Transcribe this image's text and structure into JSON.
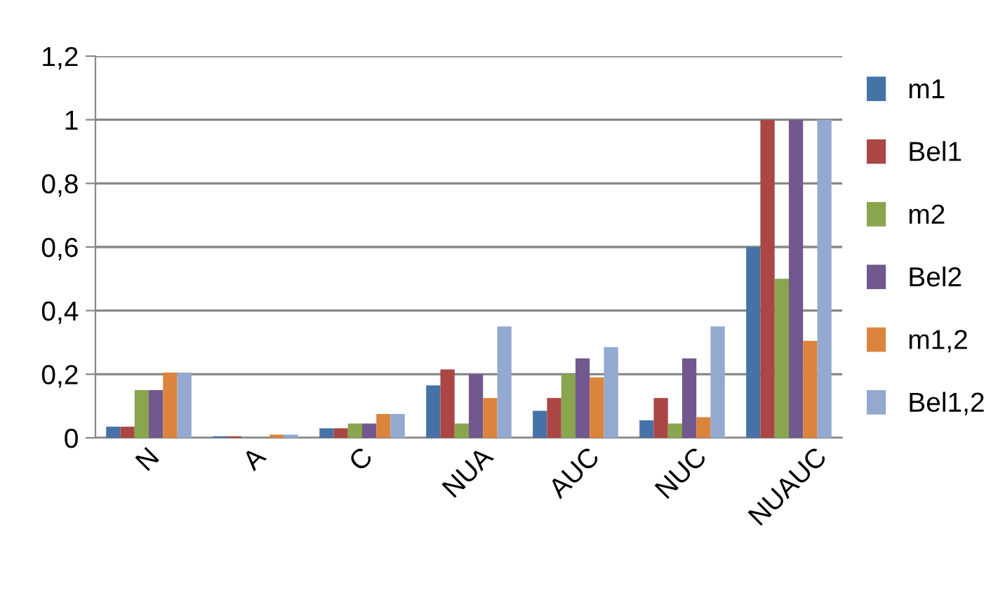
{
  "chart_data": {
    "type": "bar",
    "categories": [
      "N",
      "A",
      "C",
      "NUA",
      "AUC",
      "NUC",
      "NUAUC"
    ],
    "series": [
      {
        "name": "m1",
        "color": "#4572a7",
        "values": [
          0.035,
          0.005,
          0.03,
          0.165,
          0.085,
          0.055,
          0.6
        ]
      },
      {
        "name": "Bel1",
        "color": "#aa4643",
        "values": [
          0.035,
          0.005,
          0.03,
          0.215,
          0.125,
          0.125,
          1
        ]
      },
      {
        "name": "m2",
        "color": "#89a54e",
        "values": [
          0.15,
          0,
          0.045,
          0.045,
          0.2,
          0.045,
          0.5
        ]
      },
      {
        "name": "Bel2",
        "color": "#71588f",
        "values": [
          0.15,
          0,
          0.045,
          0.2,
          0.25,
          0.25,
          1
        ]
      },
      {
        "name": "m1,2",
        "color": "#db843d",
        "values": [
          0.205,
          0.01,
          0.075,
          0.125,
          0.19,
          0.065,
          0.305
        ]
      },
      {
        "name": "Bel1,2",
        "color": "#93a9cf",
        "values": [
          0.205,
          0.01,
          0.075,
          0.35,
          0.285,
          0.35,
          1
        ]
      }
    ],
    "ylim": [
      0,
      1.2
    ],
    "yticks": [
      0,
      {
        "value": 0.2,
        "label": "0,2"
      },
      {
        "value": 0.4,
        "label": "0,4"
      },
      {
        "value": 0.6,
        "label": "0,6"
      },
      {
        "value": 0.8,
        "label": "0,8"
      },
      1,
      {
        "value": 1.2,
        "label": "1,2"
      }
    ],
    "grid": "y",
    "legend": "right"
  }
}
